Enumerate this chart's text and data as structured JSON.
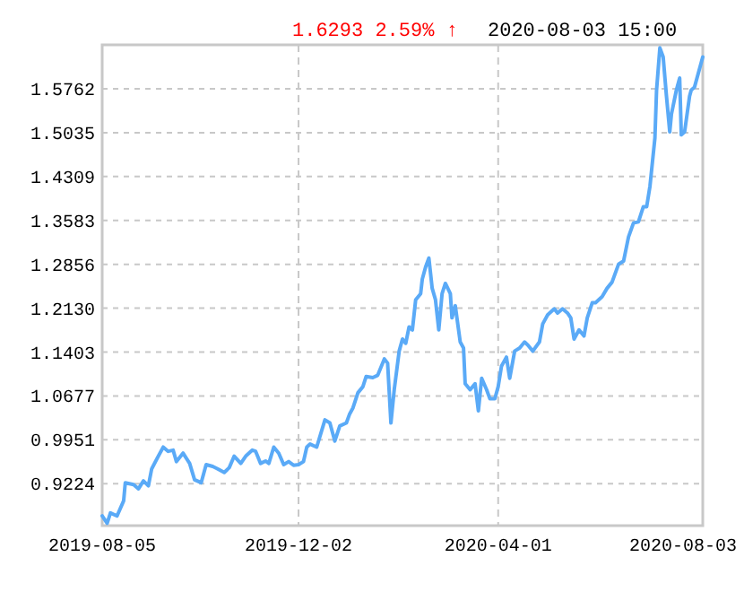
{
  "chart_data": {
    "type": "line",
    "title": "1.6293 2.59% ↑",
    "subtitle": "2020-08-03 15:00",
    "x": [
      "2019-08-05",
      "2019-08-08",
      "2019-08-10",
      "2019-08-14",
      "2019-08-18",
      "2019-08-19",
      "2019-08-24",
      "2019-08-27",
      "2019-08-30",
      "2019-09-02",
      "2019-09-04",
      "2019-09-08",
      "2019-09-11",
      "2019-09-14",
      "2019-09-17",
      "2019-09-19",
      "2019-09-23",
      "2019-09-27",
      "2019-09-30",
      "2019-10-04",
      "2019-10-07",
      "2019-10-11",
      "2019-10-14",
      "2019-10-18",
      "2019-10-21",
      "2019-10-24",
      "2019-10-28",
      "2019-10-31",
      "2019-11-04",
      "2019-11-06",
      "2019-11-09",
      "2019-11-12",
      "2019-11-14",
      "2019-11-17",
      "2019-11-20",
      "2019-11-23",
      "2019-11-26",
      "2019-11-29",
      "2019-12-02",
      "2019-12-05",
      "2019-12-07",
      "2019-12-09",
      "2019-12-13",
      "2019-12-18",
      "2019-12-21",
      "2019-12-24",
      "2019-12-27",
      "2019-12-31",
      "2020-01-02",
      "2020-01-04",
      "2020-01-07",
      "2020-01-10",
      "2020-01-12",
      "2020-01-16",
      "2020-01-19",
      "2020-01-23",
      "2020-01-25",
      "2020-01-27",
      "2020-01-29",
      "2020-02-01",
      "2020-02-03",
      "2020-02-05",
      "2020-02-07",
      "2020-02-09",
      "2020-02-11",
      "2020-02-14",
      "2020-02-15",
      "2020-02-17",
      "2020-02-19",
      "2020-02-21",
      "2020-02-23",
      "2020-02-25",
      "2020-02-27",
      "2020-02-29",
      "2020-03-03",
      "2020-03-04",
      "2020-03-06",
      "2020-03-09",
      "2020-03-11",
      "2020-03-12",
      "2020-03-15",
      "2020-03-18",
      "2020-03-20",
      "2020-03-22",
      "2020-03-25",
      "2020-03-27",
      "2020-03-30",
      "2020-04-01",
      "2020-04-03",
      "2020-04-06",
      "2020-04-08",
      "2020-04-11",
      "2020-04-14",
      "2020-04-17",
      "2020-04-19",
      "2020-04-22",
      "2020-04-26",
      "2020-04-28",
      "2020-05-01",
      "2020-05-05",
      "2020-05-07",
      "2020-05-10",
      "2020-05-13",
      "2020-05-15",
      "2020-05-17",
      "2020-05-20",
      "2020-05-23",
      "2020-05-25",
      "2020-05-28",
      "2020-05-30",
      "2020-06-03",
      "2020-06-06",
      "2020-06-09",
      "2020-06-13",
      "2020-06-16",
      "2020-06-19",
      "2020-06-22",
      "2020-06-25",
      "2020-06-28",
      "2020-06-30",
      "2020-07-02",
      "2020-07-05",
      "2020-07-06",
      "2020-07-08",
      "2020-07-10",
      "2020-07-12",
      "2020-07-14",
      "2020-07-15",
      "2020-07-18",
      "2020-07-20",
      "2020-07-21",
      "2020-07-23",
      "2020-07-26",
      "2020-07-27",
      "2020-07-29",
      "2020-08-03"
    ],
    "series": [
      {
        "color": "#5aaaf7",
        "values": [
          0.869,
          0.857,
          0.874,
          0.869,
          0.894,
          0.924,
          0.921,
          0.914,
          0.927,
          0.919,
          0.947,
          0.968,
          0.983,
          0.976,
          0.978,
          0.959,
          0.973,
          0.956,
          0.929,
          0.924,
          0.954,
          0.951,
          0.947,
          0.941,
          0.949,
          0.968,
          0.956,
          0.968,
          0.978,
          0.976,
          0.956,
          0.96,
          0.956,
          0.983,
          0.973,
          0.954,
          0.959,
          0.953,
          0.954,
          0.959,
          0.983,
          0.988,
          0.983,
          1.028,
          1.023,
          0.993,
          1.018,
          1.023,
          1.038,
          1.048,
          1.073,
          1.083,
          1.1,
          1.098,
          1.102,
          1.129,
          1.122,
          1.023,
          1.078,
          1.142,
          1.162,
          1.155,
          1.182,
          1.177,
          1.227,
          1.237,
          1.261,
          1.281,
          1.296,
          1.246,
          1.227,
          1.177,
          1.237,
          1.254,
          1.237,
          1.197,
          1.217,
          1.157,
          1.147,
          1.088,
          1.078,
          1.088,
          1.043,
          1.097,
          1.078,
          1.063,
          1.063,
          1.083,
          1.117,
          1.132,
          1.097,
          1.142,
          1.147,
          1.157,
          1.152,
          1.142,
          1.157,
          1.187,
          1.202,
          1.212,
          1.205,
          1.212,
          1.205,
          1.197,
          1.162,
          1.177,
          1.167,
          1.197,
          1.222,
          1.222,
          1.232,
          1.246,
          1.256,
          1.286,
          1.291,
          1.331,
          1.354,
          1.356,
          1.381,
          1.381,
          1.415,
          1.495,
          1.574,
          1.644,
          1.629,
          1.564,
          1.505,
          1.534,
          1.574,
          1.594,
          1.5,
          1.505,
          1.564,
          1.574,
          1.579,
          1.629
        ]
      }
    ],
    "xlim": [
      "2019-08-05",
      "2020-08-03"
    ],
    "xticks": [
      {
        "value": "2019-08-05",
        "label": "2019-08-05"
      },
      {
        "value": "2019-12-02",
        "label": "2019-12-02"
      },
      {
        "value": "2020-04-01",
        "label": "2020-04-01"
      },
      {
        "value": "2020-08-03",
        "label": "2020-08-03"
      }
    ],
    "ylim": [
      0.853,
      1.649
    ],
    "yticks": [
      0.9224,
      0.9951,
      1.0677,
      1.1403,
      {
        "value": 1.213,
        "label": "1.2130"
      },
      1.2856,
      1.3583,
      1.4309,
      1.5035,
      1.5762
    ],
    "grid": true,
    "marker": "none",
    "line_style": "solid"
  }
}
